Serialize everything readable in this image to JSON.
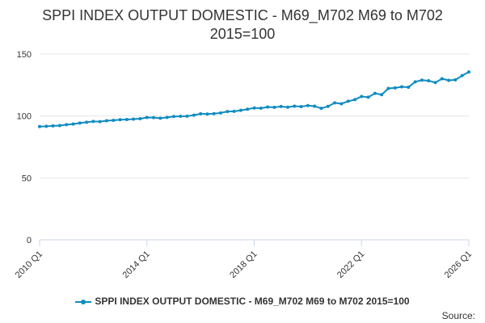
{
  "colors": {
    "series": "#0f8cc1",
    "grid": "#e6e6e6",
    "axis": "#ccd6eb",
    "text": "#333333"
  },
  "chart_data": {
    "type": "line",
    "title_line1": "SPPI INDEX OUTPUT DOMESTIC - M69_M702 M69 to M702",
    "title_line2": "2015=100",
    "xlabel": "",
    "ylabel": "",
    "ylim": [
      0,
      150
    ],
    "yticks": [
      0,
      50,
      100,
      150
    ],
    "xtick_labels": [
      "2010 Q1",
      "2014 Q1",
      "2018 Q1",
      "2022 Q1",
      "2026 Q1"
    ],
    "grid": true,
    "legend_position": "bottom",
    "source_label": "Source:",
    "series": [
      {
        "name": "SPPI INDEX OUTPUT DOMESTIC - M69_M702 M69 to M702 2015=100",
        "x": [
          "2010 Q1",
          "2010 Q2",
          "2010 Q3",
          "2010 Q4",
          "2011 Q1",
          "2011 Q2",
          "2011 Q3",
          "2011 Q4",
          "2012 Q1",
          "2012 Q2",
          "2012 Q3",
          "2012 Q4",
          "2013 Q1",
          "2013 Q2",
          "2013 Q3",
          "2013 Q4",
          "2014 Q1",
          "2014 Q2",
          "2014 Q3",
          "2014 Q4",
          "2015 Q1",
          "2015 Q2",
          "2015 Q3",
          "2015 Q4",
          "2016 Q1",
          "2016 Q2",
          "2016 Q3",
          "2016 Q4",
          "2017 Q1",
          "2017 Q2",
          "2017 Q3",
          "2017 Q4",
          "2018 Q1",
          "2018 Q2",
          "2018 Q3",
          "2018 Q4",
          "2019 Q1",
          "2019 Q2",
          "2019 Q3",
          "2019 Q4",
          "2020 Q1",
          "2020 Q2",
          "2020 Q3",
          "2020 Q4",
          "2021 Q1",
          "2021 Q2",
          "2021 Q3",
          "2021 Q4",
          "2022 Q1",
          "2022 Q2",
          "2022 Q3",
          "2022 Q4",
          "2023 Q1",
          "2023 Q2",
          "2023 Q3",
          "2023 Q4",
          "2024 Q1",
          "2024 Q2",
          "2024 Q3",
          "2024 Q4",
          "2025 Q1",
          "2025 Q2",
          "2025 Q3",
          "2025 Q4",
          "2026 Q1"
        ],
        "values": [
          91.5,
          91.7,
          92.0,
          92.3,
          93.0,
          93.5,
          94.3,
          95.0,
          95.6,
          95.5,
          96.2,
          96.5,
          97.0,
          97.2,
          97.5,
          97.8,
          98.8,
          98.7,
          98.2,
          98.9,
          99.6,
          99.8,
          99.9,
          100.7,
          101.8,
          101.6,
          101.9,
          102.5,
          103.6,
          103.8,
          104.6,
          105.5,
          106.5,
          106.3,
          107.3,
          107.0,
          107.7,
          107.1,
          107.9,
          107.6,
          108.4,
          107.9,
          106.2,
          107.8,
          110.6,
          109.9,
          111.9,
          113.2,
          115.8,
          115.2,
          118.3,
          117.2,
          122.3,
          122.7,
          123.6,
          123.3,
          127.6,
          129.0,
          128.5,
          127.0,
          130.1,
          128.8,
          129.2,
          132.6,
          135.6
        ]
      }
    ]
  }
}
